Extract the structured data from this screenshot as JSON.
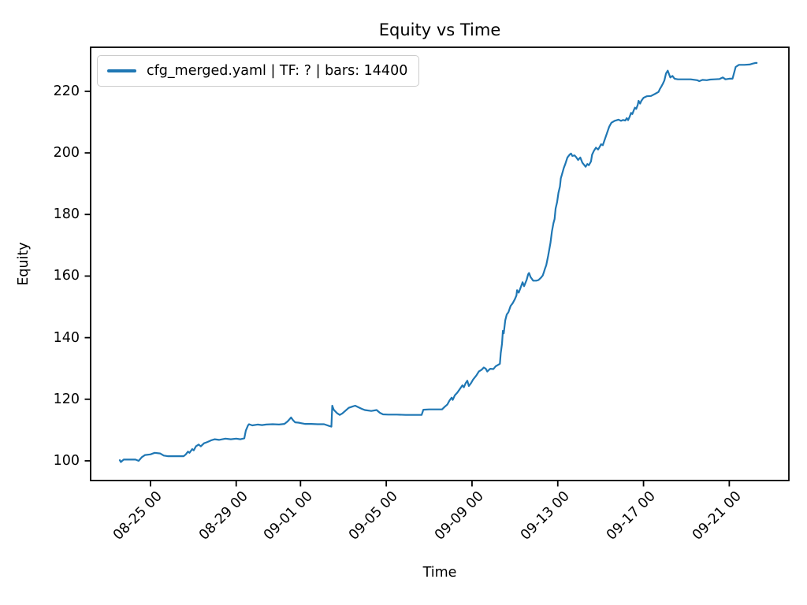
{
  "chart_data": {
    "type": "line",
    "title": "Equity vs Time",
    "xlabel": "Time",
    "ylabel": "Equity",
    "grid": false,
    "legend_position": "upper left",
    "x_unit": "days, 0 = 08-23 00:00",
    "xlim": [
      -0.79,
      31.78
    ],
    "ylim": [
      93.6,
      234.3
    ],
    "xticks": {
      "positions": [
        2,
        6,
        9,
        13,
        17,
        21,
        25,
        29
      ],
      "labels": [
        "08-25 00",
        "08-29 00",
        "09-01 00",
        "09-05 00",
        "09-09 00",
        "09-13 00",
        "09-17 00",
        "09-21 00"
      ]
    },
    "yticks": [
      100,
      120,
      140,
      160,
      180,
      200,
      220
    ],
    "series": [
      {
        "name": "cfg_merged.yaml | TF: ? | bars: 14400",
        "color": "#1f77b4",
        "line_width": 2.2,
        "points": [
          [
            0.57,
            100.2
          ],
          [
            0.62,
            99.6
          ],
          [
            0.75,
            100.4
          ],
          [
            1.0,
            100.4
          ],
          [
            1.3,
            100.4
          ],
          [
            1.45,
            100.0
          ],
          [
            1.6,
            101.2
          ],
          [
            1.75,
            101.9
          ],
          [
            2.0,
            102.1
          ],
          [
            2.2,
            102.6
          ],
          [
            2.45,
            102.4
          ],
          [
            2.62,
            101.7
          ],
          [
            2.8,
            101.5
          ],
          [
            3.2,
            101.5
          ],
          [
            3.55,
            101.5
          ],
          [
            3.65,
            102.1
          ],
          [
            3.75,
            103.0
          ],
          [
            3.82,
            102.6
          ],
          [
            3.95,
            103.8
          ],
          [
            4.02,
            103.4
          ],
          [
            4.12,
            104.7
          ],
          [
            4.25,
            105.3
          ],
          [
            4.35,
            104.7
          ],
          [
            4.5,
            105.7
          ],
          [
            4.62,
            106.0
          ],
          [
            4.75,
            106.4
          ],
          [
            4.85,
            106.7
          ],
          [
            5.0,
            107.0
          ],
          [
            5.2,
            106.8
          ],
          [
            5.5,
            107.2
          ],
          [
            5.75,
            107.0
          ],
          [
            6.0,
            107.2
          ],
          [
            6.2,
            107.0
          ],
          [
            6.38,
            107.3
          ],
          [
            6.45,
            109.8
          ],
          [
            6.55,
            111.5
          ],
          [
            6.6,
            111.9
          ],
          [
            6.75,
            111.5
          ],
          [
            7.0,
            111.8
          ],
          [
            7.2,
            111.6
          ],
          [
            7.4,
            111.8
          ],
          [
            7.7,
            111.9
          ],
          [
            8.0,
            111.8
          ],
          [
            8.25,
            112.0
          ],
          [
            8.4,
            112.8
          ],
          [
            8.5,
            113.6
          ],
          [
            8.56,
            114.1
          ],
          [
            8.65,
            113.2
          ],
          [
            8.75,
            112.5
          ],
          [
            8.9,
            112.4
          ],
          [
            9.2,
            112.0
          ],
          [
            9.5,
            112.0
          ],
          [
            9.8,
            111.9
          ],
          [
            10.1,
            111.9
          ],
          [
            10.35,
            111.3
          ],
          [
            10.44,
            111.1
          ],
          [
            10.48,
            117.9
          ],
          [
            10.55,
            116.6
          ],
          [
            10.7,
            115.5
          ],
          [
            10.83,
            114.9
          ],
          [
            10.95,
            115.4
          ],
          [
            11.1,
            116.3
          ],
          [
            11.25,
            117.2
          ],
          [
            11.45,
            117.7
          ],
          [
            11.55,
            117.9
          ],
          [
            11.7,
            117.4
          ],
          [
            11.85,
            116.9
          ],
          [
            12.0,
            116.5
          ],
          [
            12.3,
            116.2
          ],
          [
            12.55,
            116.5
          ],
          [
            12.7,
            115.6
          ],
          [
            12.85,
            115.1
          ],
          [
            13.1,
            115.0
          ],
          [
            13.5,
            115.0
          ],
          [
            13.9,
            114.9
          ],
          [
            14.3,
            114.9
          ],
          [
            14.65,
            114.9
          ],
          [
            14.73,
            116.6
          ],
          [
            15.0,
            116.7
          ],
          [
            15.3,
            116.7
          ],
          [
            15.6,
            116.7
          ],
          [
            15.72,
            117.5
          ],
          [
            15.85,
            118.3
          ],
          [
            15.95,
            119.6
          ],
          [
            16.05,
            120.5
          ],
          [
            16.1,
            119.8
          ],
          [
            16.2,
            121.3
          ],
          [
            16.32,
            122.2
          ],
          [
            16.45,
            123.5
          ],
          [
            16.55,
            124.5
          ],
          [
            16.62,
            123.9
          ],
          [
            16.7,
            125.2
          ],
          [
            16.78,
            126.0
          ],
          [
            16.85,
            124.3
          ],
          [
            16.95,
            125.2
          ],
          [
            17.05,
            126.4
          ],
          [
            17.2,
            127.7
          ],
          [
            17.32,
            129.0
          ],
          [
            17.45,
            129.6
          ],
          [
            17.55,
            130.3
          ],
          [
            17.64,
            129.9
          ],
          [
            17.71,
            129.0
          ],
          [
            17.85,
            129.9
          ],
          [
            18.0,
            129.8
          ],
          [
            18.1,
            130.7
          ],
          [
            18.2,
            131.1
          ],
          [
            18.3,
            131.5
          ],
          [
            18.34,
            135.0
          ],
          [
            18.4,
            138.0
          ],
          [
            18.44,
            142.2
          ],
          [
            18.48,
            141.4
          ],
          [
            18.55,
            145.6
          ],
          [
            18.62,
            147.5
          ],
          [
            18.7,
            148.3
          ],
          [
            18.8,
            150.3
          ],
          [
            18.9,
            151.2
          ],
          [
            19.0,
            152.5
          ],
          [
            19.07,
            153.7
          ],
          [
            19.1,
            155.4
          ],
          [
            19.18,
            154.6
          ],
          [
            19.27,
            156.3
          ],
          [
            19.36,
            158.0
          ],
          [
            19.43,
            156.7
          ],
          [
            19.55,
            158.8
          ],
          [
            19.62,
            160.6
          ],
          [
            19.66,
            161.0
          ],
          [
            19.73,
            159.7
          ],
          [
            19.85,
            158.5
          ],
          [
            20.0,
            158.5
          ],
          [
            20.1,
            158.7
          ],
          [
            20.22,
            159.5
          ],
          [
            20.3,
            160.2
          ],
          [
            20.36,
            161.4
          ],
          [
            20.4,
            162.3
          ],
          [
            20.46,
            163.5
          ],
          [
            20.55,
            166.5
          ],
          [
            20.6,
            168.5
          ],
          [
            20.66,
            170.8
          ],
          [
            20.73,
            174.6
          ],
          [
            20.8,
            177.2
          ],
          [
            20.85,
            178.5
          ],
          [
            20.9,
            181.9
          ],
          [
            20.97,
            184.0
          ],
          [
            21.03,
            187.0
          ],
          [
            21.1,
            189.1
          ],
          [
            21.14,
            191.7
          ],
          [
            21.21,
            193.4
          ],
          [
            21.28,
            195.1
          ],
          [
            21.35,
            196.4
          ],
          [
            21.45,
            198.5
          ],
          [
            21.55,
            199.4
          ],
          [
            21.62,
            199.8
          ],
          [
            21.68,
            199.0
          ],
          [
            21.78,
            199.2
          ],
          [
            21.85,
            198.7
          ],
          [
            21.95,
            197.7
          ],
          [
            22.05,
            198.5
          ],
          [
            22.15,
            196.8
          ],
          [
            22.3,
            195.5
          ],
          [
            22.38,
            196.4
          ],
          [
            22.45,
            196.0
          ],
          [
            22.55,
            197.2
          ],
          [
            22.6,
            199.4
          ],
          [
            22.68,
            200.6
          ],
          [
            22.78,
            201.7
          ],
          [
            22.88,
            201.1
          ],
          [
            22.95,
            201.9
          ],
          [
            23.02,
            202.8
          ],
          [
            23.1,
            202.5
          ],
          [
            23.2,
            204.5
          ],
          [
            23.3,
            206.5
          ],
          [
            23.4,
            208.5
          ],
          [
            23.5,
            209.8
          ],
          [
            23.65,
            210.4
          ],
          [
            23.83,
            210.8
          ],
          [
            23.95,
            210.4
          ],
          [
            24.05,
            210.7
          ],
          [
            24.15,
            210.5
          ],
          [
            24.22,
            211.3
          ],
          [
            24.28,
            210.6
          ],
          [
            24.35,
            211.7
          ],
          [
            24.42,
            213.0
          ],
          [
            24.48,
            212.6
          ],
          [
            24.55,
            213.9
          ],
          [
            24.6,
            214.7
          ],
          [
            24.66,
            214.3
          ],
          [
            24.73,
            215.6
          ],
          [
            24.77,
            216.9
          ],
          [
            24.84,
            216.0
          ],
          [
            24.9,
            216.9
          ],
          [
            25.0,
            217.9
          ],
          [
            25.15,
            218.4
          ],
          [
            25.35,
            218.5
          ],
          [
            25.55,
            219.2
          ],
          [
            25.7,
            219.8
          ],
          [
            25.76,
            220.7
          ],
          [
            25.83,
            221.5
          ],
          [
            25.9,
            222.4
          ],
          [
            25.97,
            223.5
          ],
          [
            26.05,
            225.8
          ],
          [
            26.13,
            226.7
          ],
          [
            26.2,
            225.4
          ],
          [
            26.25,
            224.5
          ],
          [
            26.35,
            225.0
          ],
          [
            26.45,
            224.1
          ],
          [
            26.6,
            223.9
          ],
          [
            26.9,
            223.9
          ],
          [
            27.2,
            223.9
          ],
          [
            27.5,
            223.6
          ],
          [
            27.6,
            223.3
          ],
          [
            27.75,
            223.7
          ],
          [
            27.95,
            223.6
          ],
          [
            28.1,
            223.8
          ],
          [
            28.3,
            223.9
          ],
          [
            28.55,
            224.0
          ],
          [
            28.7,
            224.5
          ],
          [
            28.82,
            223.9
          ],
          [
            29.0,
            224.1
          ],
          [
            29.15,
            224.1
          ],
          [
            29.3,
            227.9
          ],
          [
            29.45,
            228.6
          ],
          [
            29.7,
            228.6
          ],
          [
            29.95,
            228.7
          ],
          [
            30.1,
            229.0
          ],
          [
            30.22,
            229.2
          ],
          [
            30.28,
            229.2
          ]
        ]
      }
    ]
  }
}
